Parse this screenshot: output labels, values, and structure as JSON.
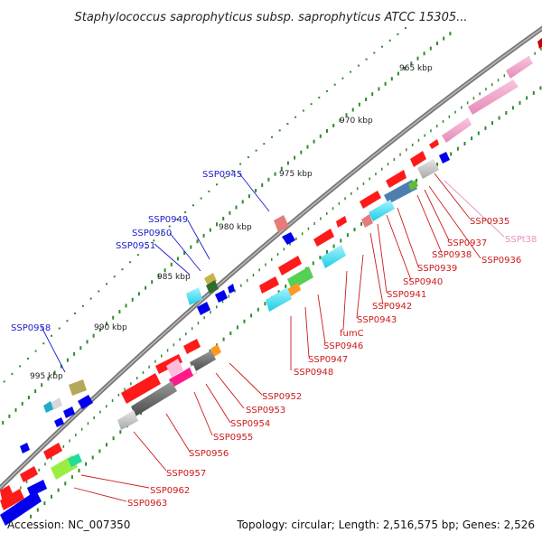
{
  "title": "Staphylococcus saprophyticus subsp. saprophyticus ATCC 15305...",
  "footer": {
    "accession": "Accession: NC_007350",
    "summary": "Topology: circular; Length: 2,516,575 bp; Genes: 2,526"
  },
  "ticks": [
    "965 kbp",
    "970 kbp",
    "975 kbp",
    "980 kbp",
    "985 kbp",
    "990 kbp",
    "995 kbp"
  ],
  "gene_labels": [
    {
      "text": "SSP0945",
      "color": "#1a1acc"
    },
    {
      "text": "SSP0949",
      "color": "#1a1acc"
    },
    {
      "text": "SSP0950",
      "color": "#1a1acc"
    },
    {
      "text": "SSP0951",
      "color": "#1a1acc"
    },
    {
      "text": "SSP0958",
      "color": "#1a1acc"
    },
    {
      "text": "SSP0935",
      "color": "#cc1a1a"
    },
    {
      "text": "SSPt38",
      "color": "#e98fbf"
    },
    {
      "text": "SSP0937",
      "color": "#cc1a1a"
    },
    {
      "text": "SSP0938",
      "color": "#cc1a1a"
    },
    {
      "text": "SSP0936",
      "color": "#cc1a1a"
    },
    {
      "text": "SSP0939",
      "color": "#cc1a1a"
    },
    {
      "text": "SSP0940",
      "color": "#cc1a1a"
    },
    {
      "text": "SSP0941",
      "color": "#cc1a1a"
    },
    {
      "text": "SSP0942",
      "color": "#cc1a1a"
    },
    {
      "text": "SSP0943",
      "color": "#cc1a1a"
    },
    {
      "text": "fumC",
      "color": "#cc1a1a"
    },
    {
      "text": "SSP0946",
      "color": "#cc1a1a"
    },
    {
      "text": "SSP0947",
      "color": "#cc1a1a"
    },
    {
      "text": "SSP0948",
      "color": "#cc1a1a"
    },
    {
      "text": "SSP0952",
      "color": "#cc1a1a"
    },
    {
      "text": "SSP0953",
      "color": "#cc1a1a"
    },
    {
      "text": "SSP0954",
      "color": "#cc1a1a"
    },
    {
      "text": "SSP0955",
      "color": "#cc1a1a"
    },
    {
      "text": "SSP0956",
      "color": "#cc1a1a"
    },
    {
      "text": "SSP0957",
      "color": "#cc1a1a"
    },
    {
      "text": "SSP0962",
      "color": "#cc1a1a"
    },
    {
      "text": "SSP0963",
      "color": "#cc1a1a"
    }
  ]
}
